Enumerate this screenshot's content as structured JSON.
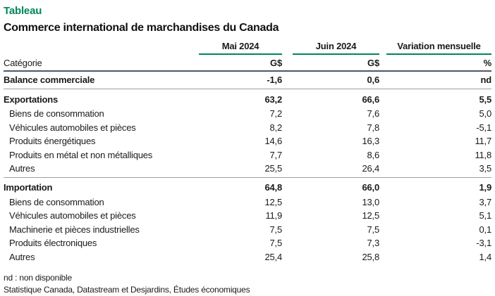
{
  "header": {
    "kicker": "Tableau",
    "title": "Commerce international de marchandises du Canada"
  },
  "chart_data": {
    "type": "table",
    "title": "Commerce international de marchandises du Canada",
    "category_header": "Catégorie",
    "col_headers": [
      "Mai 2024",
      "Juin 2024",
      "Variation mensuelle"
    ],
    "unit_row": [
      "G$",
      "G$",
      "%"
    ],
    "sections": [
      {
        "rows": [
          {
            "label": "Balance commerciale",
            "bold": true,
            "values": [
              "-1,6",
              "0,6",
              "nd"
            ]
          }
        ]
      },
      {
        "rows": [
          {
            "label": "Exportations",
            "bold": true,
            "values": [
              "63,2",
              "66,6",
              "5,5"
            ]
          },
          {
            "label": "Biens de consommation",
            "bold": false,
            "values": [
              "7,2",
              "7,6",
              "5,0"
            ]
          },
          {
            "label": "Véhicules automobiles et pièces",
            "bold": false,
            "values": [
              "8,2",
              "7,8",
              "-5,1"
            ]
          },
          {
            "label": "Produits énergétiques",
            "bold": false,
            "values": [
              "14,6",
              "16,3",
              "11,7"
            ]
          },
          {
            "label": "Produits en métal et non métalliques",
            "bold": false,
            "values": [
              "7,7",
              "8,6",
              "11,8"
            ]
          },
          {
            "label": "Autres",
            "bold": false,
            "values": [
              "25,5",
              "26,4",
              "3,5"
            ]
          }
        ]
      },
      {
        "rows": [
          {
            "label": "Importation",
            "bold": true,
            "values": [
              "64,8",
              "66,0",
              "1,9"
            ]
          },
          {
            "label": "Biens de consommation",
            "bold": false,
            "values": [
              "12,5",
              "13,0",
              "3,7"
            ]
          },
          {
            "label": "Véhicules automobiles et pièces",
            "bold": false,
            "values": [
              "11,9",
              "12,5",
              "5,1"
            ]
          },
          {
            "label": "Machinerie et pièces industrielles",
            "bold": false,
            "values": [
              "7,5",
              "7,5",
              "0,1"
            ]
          },
          {
            "label": "Produits électroniques",
            "bold": false,
            "values": [
              "7,5",
              "7,3",
              "-3,1"
            ]
          },
          {
            "label": "Autres",
            "bold": false,
            "values": [
              "25,4",
              "25,8",
              "1,4"
            ]
          }
        ]
      }
    ]
  },
  "footer": {
    "note": "nd : non disponible",
    "source": "Statistique Canada, Datastream et Desjardins, Études économiques"
  },
  "colors": {
    "accent_green": "#00855C",
    "rule_dark": "#4d5866",
    "rule_light": "#999FA6",
    "text": "#1a1a1a"
  }
}
